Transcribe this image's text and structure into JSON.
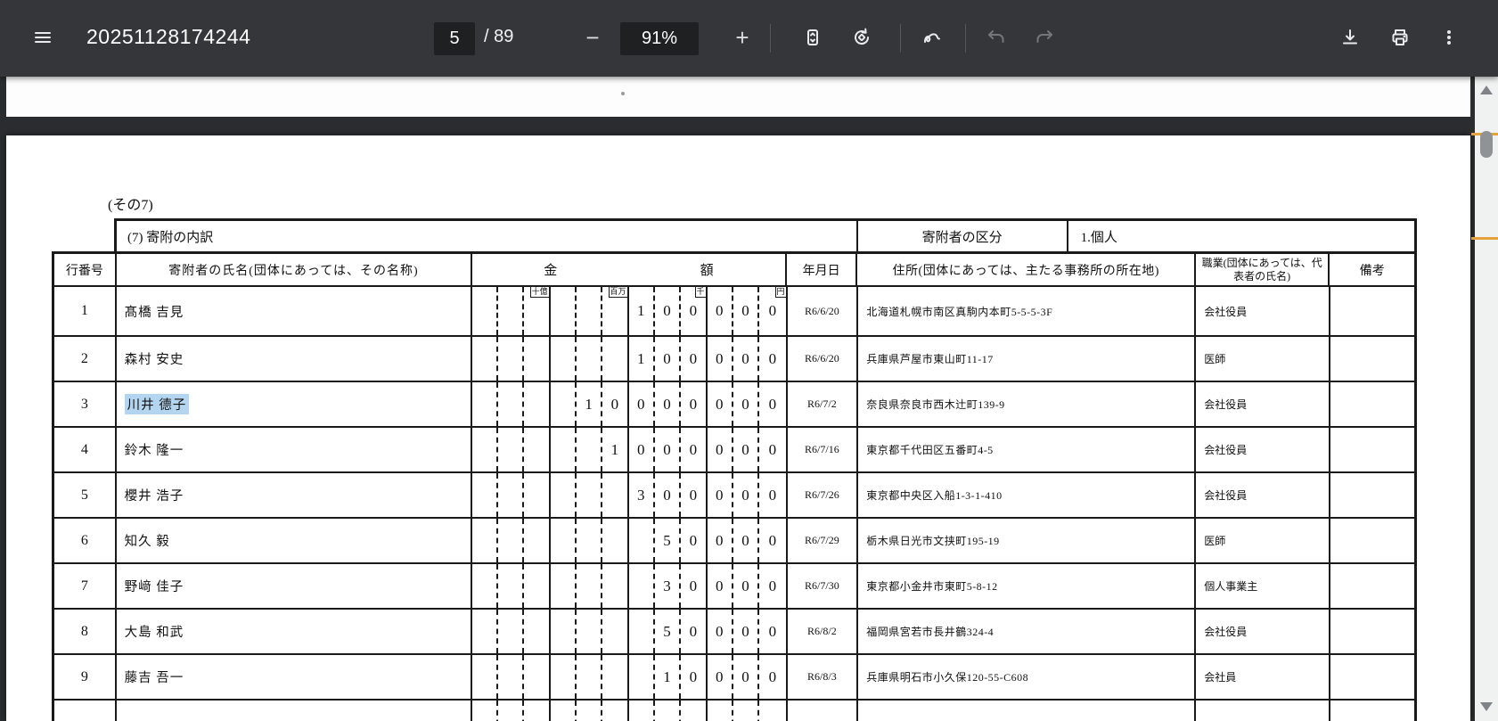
{
  "toolbar": {
    "title": "20251128174244",
    "page_current": "5",
    "page_total": "/ 89",
    "zoom_out_label": "−",
    "zoom_level": "91%",
    "zoom_in_label": "+"
  },
  "icons": {
    "menu": "hamburger-menu",
    "fit_page": "fit-to-page",
    "rotate": "rotate-counterclockwise",
    "annotate": "ink-pen-squiggle",
    "undo": "undo-arrow",
    "redo": "redo-arrow",
    "download": "download-arrow-tray",
    "print": "printer",
    "more": "kebab-vertical-dots"
  },
  "colors": {
    "selection_highlight": "#b4d5f0",
    "scrollbar_find_marker": "#e3a23a",
    "toolbar_background": "#343639"
  },
  "document": {
    "page_note": "(その7)",
    "section_title": "(7) 寄附の内訳",
    "donor_category_label": "寄附者の区分",
    "donor_category_value": "1.個人",
    "columns": {
      "row_no": "行番号",
      "name": "寄附者の氏名(団体にあっては、その名称)",
      "amount_left": "金",
      "amount_right": "額",
      "date": "年月日",
      "address": "住所(団体にあっては、主たる事務所の所在地)",
      "occupation": "職業(団体にあっては、代表者の氏名)",
      "remarks": "備考"
    },
    "amount_units": [
      "十億",
      "百万",
      "千",
      "円"
    ],
    "rows": [
      {
        "no": "1",
        "name": "髙橋 吉見",
        "amount": "100000",
        "date": "R6/6/20",
        "address": "北海道札幌市南区真駒内本町5-5-5-3F",
        "occupation": "会社役員",
        "remarks": "",
        "highlighted": false
      },
      {
        "no": "2",
        "name": "森村 安史",
        "amount": "100000",
        "date": "R6/6/20",
        "address": "兵庫県芦屋市東山町11-17",
        "occupation": "医師",
        "remarks": "",
        "highlighted": false
      },
      {
        "no": "3",
        "name": "川井 德子",
        "amount": "10000000",
        "date": "R6/7/2",
        "address": "奈良県奈良市西木辻町139-9",
        "occupation": "会社役員",
        "remarks": "",
        "highlighted": true
      },
      {
        "no": "4",
        "name": "鈴木 隆一",
        "amount": "1000000",
        "date": "R6/7/16",
        "address": "東京都千代田区五番町4-5",
        "occupation": "会社役員",
        "remarks": "",
        "highlighted": false
      },
      {
        "no": "5",
        "name": "櫻井 浩子",
        "amount": "300000",
        "date": "R6/7/26",
        "address": "東京都中央区入船1-3-1-410",
        "occupation": "会社役員",
        "remarks": "",
        "highlighted": false
      },
      {
        "no": "6",
        "name": "知久 毅",
        "amount": "50000",
        "date": "R6/7/29",
        "address": "栃木県日光市文挟町195-19",
        "occupation": "医師",
        "remarks": "",
        "highlighted": false
      },
      {
        "no": "7",
        "name": "野﨑 佳子",
        "amount": "30000",
        "date": "R6/7/30",
        "address": "東京都小金井市東町5-8-12",
        "occupation": "個人事業主",
        "remarks": "",
        "highlighted": false
      },
      {
        "no": "8",
        "name": "大島 和武",
        "amount": "50000",
        "date": "R6/8/2",
        "address": "福岡県宮若市長井鶴324-4",
        "occupation": "会社役員",
        "remarks": "",
        "highlighted": false
      },
      {
        "no": "9",
        "name": "藤吉 吾一",
        "amount": "10000",
        "date": "R6/8/3",
        "address": "兵庫県明石市小久保120-55-C608",
        "occupation": "会社員",
        "remarks": "",
        "highlighted": false
      }
    ]
  }
}
